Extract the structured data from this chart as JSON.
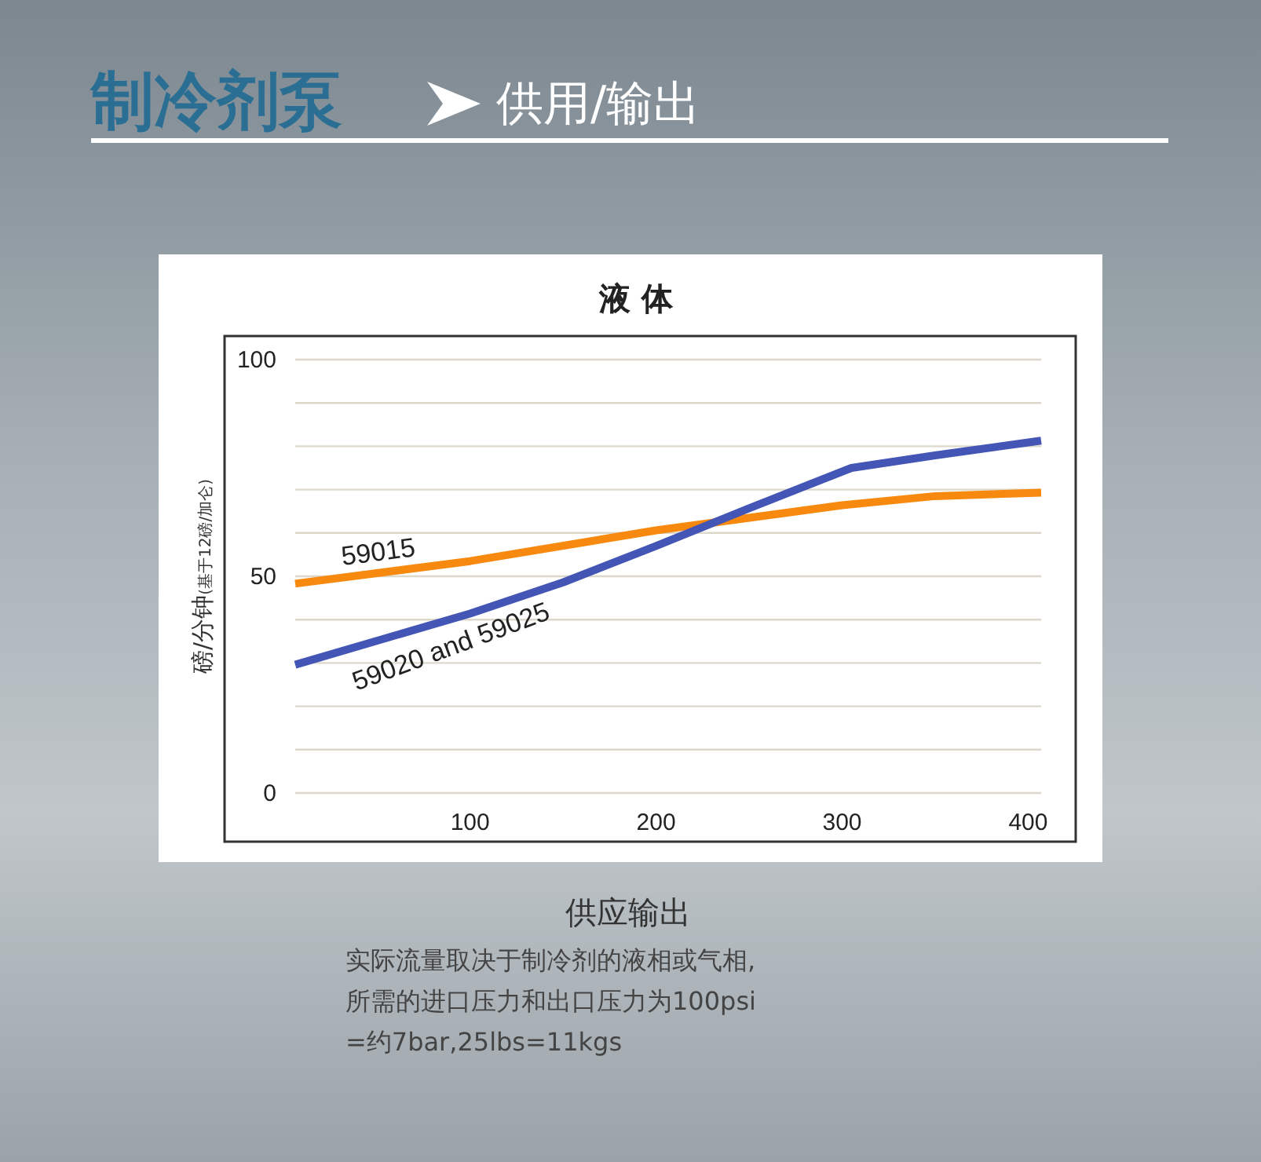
{
  "chart_data": {
    "type": "line",
    "title": "液 体",
    "ylabel": "磅/分钟(基于12磅/加仑)",
    "annotations": [
      "制冷剂泵",
      "供用/输出",
      "供应输出",
      "实际流量取决于制冷剂的液相或气相,",
      "所需的进口压力和出口压力为100psi",
      "=约7bar,25lbs=11kgs"
    ],
    "series": [
      {
        "name": "59015",
        "color": "#f7890f",
        "x": [
          6,
          100,
          200,
          300,
          350,
          407
        ],
        "values": [
          48.3,
          53.5,
          60.6,
          66.4,
          68.5,
          69.3
        ]
      },
      {
        "name": "59020 and 59025",
        "color": "#4355b5",
        "x": [
          6,
          100,
          150,
          200,
          250,
          305,
          350,
          407
        ],
        "values": [
          29.6,
          41.4,
          48.6,
          57,
          65.7,
          75,
          77.9,
          81.3
        ]
      }
    ],
    "xlim": [
      6,
      407
    ],
    "xticks": [
      100,
      200,
      300,
      400
    ],
    "ylim": [
      0,
      100
    ],
    "yticks": [
      0,
      {
        "value": 10,
        "label": null
      },
      {
        "value": 20,
        "label": null
      },
      {
        "value": 30,
        "label": null
      },
      {
        "value": 40,
        "label": null
      },
      50,
      {
        "value": 60,
        "label": null
      },
      {
        "value": 70,
        "label": null
      },
      {
        "value": 80,
        "label": null
      },
      {
        "value": 90,
        "label": null
      },
      100
    ],
    "grid": "y",
    "line_style": "solid",
    "marker": "none"
  }
}
